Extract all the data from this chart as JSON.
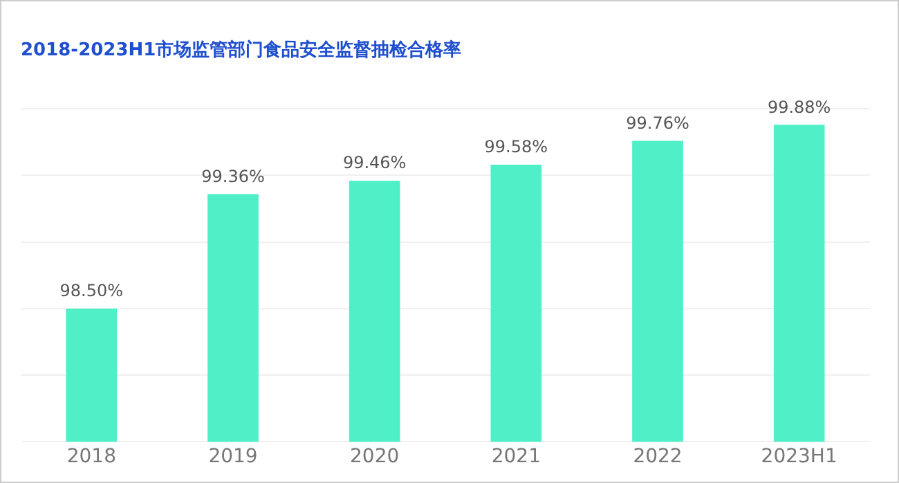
{
  "chart_data": {
    "type": "bar",
    "title": "2018-2023H1市场监管部门食品安全监督抽检合格率",
    "categories": [
      "2018",
      "2019",
      "2020",
      "2021",
      "2022",
      "2023H1"
    ],
    "values": [
      98.5,
      99.36,
      99.46,
      99.58,
      99.76,
      99.88
    ],
    "value_labels": [
      "98.50%",
      "99.36%",
      "99.46%",
      "99.58%",
      "99.76%",
      "99.88%"
    ],
    "color": "#4ff0c8",
    "ylim": [
      97.5,
      100
    ],
    "yticks": [
      {
        "value": 97.5,
        "label": null
      },
      {
        "value": 98,
        "label": null
      },
      {
        "value": 98.5,
        "label": null
      },
      {
        "value": 99,
        "label": null
      },
      {
        "value": 99.5,
        "label": null
      },
      {
        "value": 100,
        "label": null
      }
    ],
    "tick_labels": "x",
    "grid": "y"
  }
}
